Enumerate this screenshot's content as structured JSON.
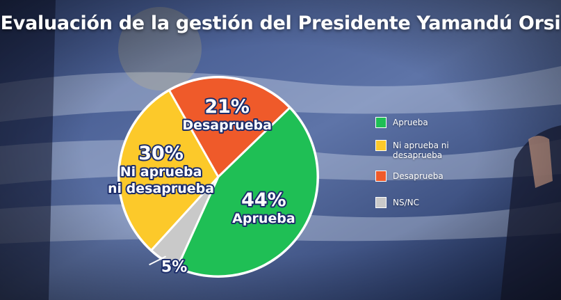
{
  "header": {
    "title": "Evaluación de la gestión del Presidente Yamandú Orsi"
  },
  "colors": {
    "aprueba": "#1fbf55",
    "ni": "#fcc92a",
    "desaprueba": "#ef5a2a",
    "nsnc": "#c9c9c9",
    "label_fill": "#ffffff",
    "label_outline": "#1c2d6b"
  },
  "chart_data": {
    "type": "pie",
    "title": "Evaluación de la gestión del Presidente Yamandú Orsi",
    "legend_position": "right",
    "slices": [
      {
        "name": "Aprueba",
        "value": 44,
        "percent_label": "44%",
        "label_lines": [
          "Aprueba"
        ],
        "color": "#1fbf55"
      },
      {
        "name": "NS/NC",
        "value": 5,
        "percent_label": "5%",
        "label_lines": [],
        "color": "#c9c9c9"
      },
      {
        "name": "Ni aprueba ni desaprueba",
        "value": 30,
        "percent_label": "30%",
        "label_lines": [
          "Ni aprueba",
          "ni desaprueba"
        ],
        "color": "#fcc92a"
      },
      {
        "name": "Desaprueba",
        "value": 21,
        "percent_label": "21%",
        "label_lines": [
          "Desaprueba"
        ],
        "color": "#ef5a2a"
      }
    ],
    "legend": [
      {
        "label": "Aprueba",
        "color": "#1fbf55"
      },
      {
        "label": "Ni aprueba ni desaprueba",
        "color": "#fcc92a"
      },
      {
        "label": "Desaprueba",
        "color": "#ef5a2a"
      },
      {
        "label": "NS/NC",
        "color": "#c9c9c9"
      }
    ]
  }
}
